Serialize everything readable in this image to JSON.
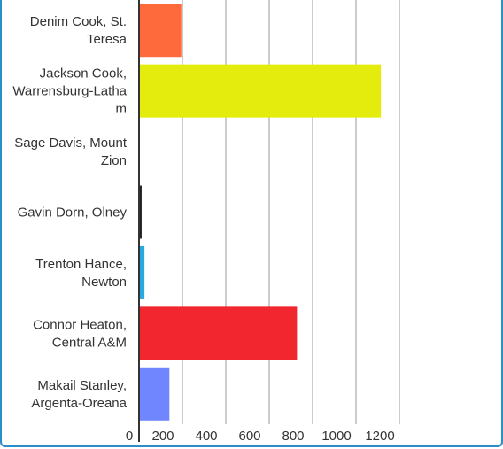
{
  "chart_data": {
    "type": "bar",
    "orientation": "horizontal",
    "categories": [
      "Denim Cook, St. Teresa",
      "Jackson Cook, Warrensburg-Latham",
      "Sage Davis, Mount Zion",
      "Gavin Dorn, Olney",
      "Trenton Hance, Newton",
      "Connor Heaton, Central A&M",
      "Makail Stanley, Argenta-Oreana"
    ],
    "category_label_lines": [
      [
        "Denim Cook, St.",
        "Teresa"
      ],
      [
        "Jackson Cook,",
        "Warrensburg-Latha",
        "m"
      ],
      [
        "Sage Davis, Mount",
        "Zion"
      ],
      [
        "Gavin Dorn, Olney"
      ],
      [
        "Trenton Hance,",
        "Newton"
      ],
      [
        "Connor Heaton,",
        "Central A&M"
      ],
      [
        "Makail Stanley,",
        "Argenta-Oreana"
      ]
    ],
    "values": [
      195,
      1115,
      0,
      12,
      25,
      728,
      140
    ],
    "colors": [
      "#ff6a3d",
      "#e3ec0c",
      "#cccccc",
      "#222222",
      "#2aa9e0",
      "#f2262f",
      "#6f86ff"
    ],
    "xlim": [
      0,
      1200
    ],
    "xticks": [
      "0",
      "200",
      "400",
      "600",
      "800",
      "1000",
      "1200"
    ],
    "grid": true,
    "title": "",
    "xlabel": "",
    "ylabel": ""
  }
}
